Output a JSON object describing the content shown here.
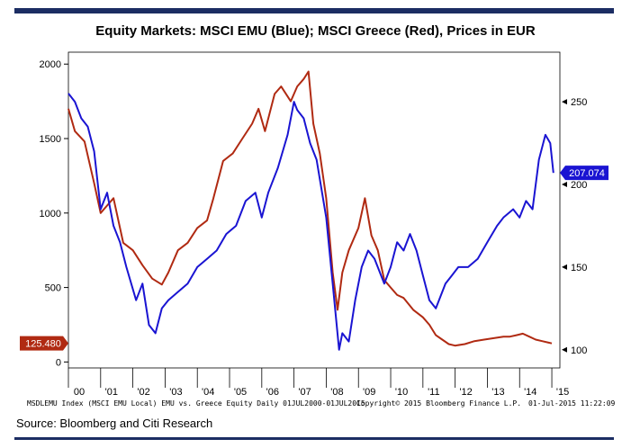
{
  "title": "Equity Markets: MSCI EMU (Blue); MSCI Greece (Red), Prices in EUR",
  "footer": {
    "left": "MSDLEMU Index (MSCI EMU Local) EMU vs. Greece Equity  Daily 01JUL2000-01JUL2015",
    "middle": "Copyright© 2015 Bloomberg Finance L.P.",
    "right": "01-Jul-2015 11:22:09"
  },
  "source": "Source: Bloomberg and Citi Research",
  "colors": {
    "emu": "#1a14d2",
    "greece": "#b02a12",
    "frame": "#1c2d63"
  },
  "chart_data": {
    "type": "line",
    "title": "Equity Markets: MSCI EMU (Blue); MSCI Greece (Red), Prices in EUR",
    "x_tick_labels": [
      "00",
      "'01",
      "'02",
      "'03",
      "'04",
      "'05",
      "'06",
      "'07",
      "'08",
      "'09",
      "'10",
      "'11",
      "'12",
      "'13",
      "'14",
      "'15"
    ],
    "x_ticks": [
      2000.5,
      2001.5,
      2002.5,
      2003.5,
      2004.5,
      2005.5,
      2006.5,
      2007.5,
      2008.5,
      2009.5,
      2010.5,
      2011.5,
      2012.5,
      2013.5,
      2014.5,
      2015.5
    ],
    "xlim": [
      2000.5,
      2015.75
    ],
    "left_axis": {
      "ticks": [
        0,
        500,
        1000,
        1500,
        2000
      ],
      "ylim": [
        -40,
        2080
      ]
    },
    "right_axis": {
      "ticks": [
        100,
        150,
        200,
        250
      ],
      "ylim": [
        89,
        280
      ]
    },
    "series": [
      {
        "name": "MSCI Greece",
        "axis": "left",
        "last_value_label": "125.480",
        "x": [
          2000.5,
          2000.7,
          2001.0,
          2001.3,
          2001.5,
          2001.7,
          2001.9,
          2002.2,
          2002.5,
          2002.8,
          2003.1,
          2003.4,
          2003.6,
          2003.9,
          2004.2,
          2004.5,
          2004.8,
          2005.0,
          2005.3,
          2005.6,
          2005.9,
          2006.2,
          2006.4,
          2006.6,
          2006.9,
          2007.1,
          2007.4,
          2007.6,
          2007.8,
          2007.95,
          2008.1,
          2008.3,
          2008.5,
          2008.7,
          2008.85,
          2009.0,
          2009.2,
          2009.5,
          2009.7,
          2009.9,
          2010.1,
          2010.3,
          2010.5,
          2010.7,
          2010.9,
          2011.2,
          2011.5,
          2011.7,
          2011.9,
          2012.1,
          2012.3,
          2012.5,
          2012.8,
          2013.1,
          2013.4,
          2013.7,
          2014.0,
          2014.2,
          2014.4,
          2014.6,
          2014.8,
          2015.0,
          2015.2,
          2015.4,
          2015.5
        ],
        "y": [
          1700,
          1550,
          1480,
          1200,
          1000,
          1050,
          1100,
          800,
          750,
          650,
          560,
          520,
          600,
          750,
          800,
          900,
          950,
          1100,
          1350,
          1400,
          1500,
          1600,
          1700,
          1550,
          1800,
          1850,
          1750,
          1850,
          1900,
          1950,
          1600,
          1400,
          1100,
          600,
          350,
          600,
          750,
          900,
          1100,
          850,
          750,
          550,
          500,
          450,
          430,
          350,
          300,
          250,
          180,
          150,
          120,
          110,
          120,
          140,
          150,
          160,
          170,
          170,
          180,
          190,
          170,
          150,
          140,
          130,
          125
        ]
      },
      {
        "name": "MSCI EMU",
        "axis": "right",
        "last_value_label": "207.074",
        "x": [
          2000.5,
          2000.7,
          2000.9,
          2001.1,
          2001.3,
          2001.5,
          2001.7,
          2001.9,
          2002.1,
          2002.3,
          2002.6,
          2002.8,
          2003.0,
          2003.2,
          2003.4,
          2003.6,
          2003.9,
          2004.2,
          2004.5,
          2004.8,
          2005.1,
          2005.4,
          2005.7,
          2006.0,
          2006.3,
          2006.5,
          2006.7,
          2007.0,
          2007.3,
          2007.5,
          2007.6,
          2007.8,
          2008.0,
          2008.2,
          2008.5,
          2008.7,
          2008.9,
          2009.0,
          2009.2,
          2009.4,
          2009.6,
          2009.8,
          2010.0,
          2010.3,
          2010.5,
          2010.7,
          2010.9,
          2011.1,
          2011.3,
          2011.5,
          2011.7,
          2011.9,
          2012.2,
          2012.4,
          2012.6,
          2012.9,
          2013.2,
          2013.5,
          2013.8,
          2014.0,
          2014.3,
          2014.5,
          2014.7,
          2014.9,
          2015.1,
          2015.3,
          2015.45,
          2015.55
        ],
        "y": [
          255,
          250,
          240,
          235,
          220,
          185,
          195,
          175,
          165,
          150,
          130,
          140,
          115,
          110,
          125,
          130,
          135,
          140,
          150,
          155,
          160,
          170,
          175,
          190,
          195,
          180,
          195,
          210,
          230,
          250,
          245,
          240,
          225,
          215,
          180,
          140,
          100,
          110,
          105,
          130,
          150,
          160,
          155,
          140,
          150,
          165,
          160,
          170,
          160,
          145,
          130,
          125,
          140,
          145,
          150,
          150,
          155,
          165,
          175,
          180,
          185,
          180,
          190,
          185,
          215,
          230,
          225,
          207
        ]
      }
    ]
  }
}
